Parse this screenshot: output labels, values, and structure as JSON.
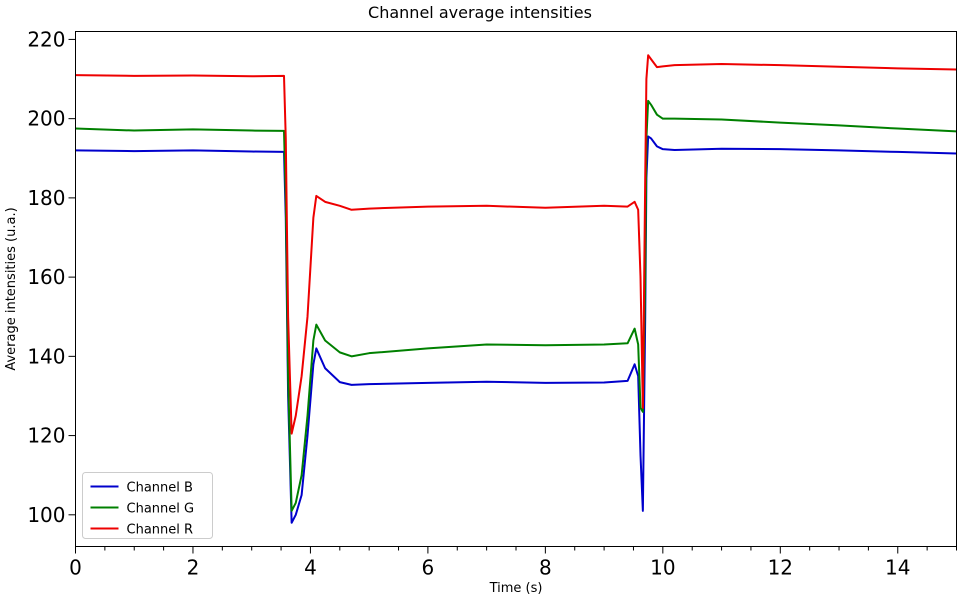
{
  "chart_data": {
    "type": "line",
    "title": "Channel average intensities",
    "xlabel": "Time (s)",
    "ylabel": "Average intensities (u.a.)",
    "xlim": [
      0,
      15
    ],
    "ylim": [
      92,
      222
    ],
    "xticks": [
      0,
      2,
      4,
      6,
      8,
      10,
      12,
      14
    ],
    "yticks": [
      100,
      120,
      140,
      160,
      180,
      200,
      220
    ],
    "grid": false,
    "legend_position": "bottom-left",
    "series": [
      {
        "name": "Channel B",
        "color": "#0000cc",
        "x": [
          0,
          1,
          2,
          3,
          3.55,
          3.58,
          3.62,
          3.68,
          3.75,
          3.85,
          3.95,
          4.05,
          4.1,
          4.25,
          4.5,
          4.7,
          5,
          6,
          7,
          8,
          9,
          9.4,
          9.52,
          9.58,
          9.62,
          9.66,
          9.7,
          9.72,
          9.75,
          9.8,
          9.9,
          10,
          10.2,
          11,
          12,
          13,
          14,
          15
        ],
        "y": [
          192,
          191.8,
          192,
          191.7,
          191.6,
          175,
          130,
          98,
          100,
          105,
          120,
          138,
          142,
          137,
          133.5,
          132.8,
          133,
          133.3,
          133.6,
          133.3,
          133.4,
          133.8,
          138,
          135,
          115,
          101,
          150,
          185,
          195.5,
          195,
          193,
          192.3,
          192.1,
          192.4,
          192.3,
          192,
          191.6,
          191.2
        ]
      },
      {
        "name": "Channel G",
        "color": "#008000",
        "x": [
          0,
          1,
          2,
          3,
          3.55,
          3.58,
          3.62,
          3.68,
          3.75,
          3.85,
          3.95,
          4.05,
          4.1,
          4.25,
          4.5,
          4.7,
          5,
          6,
          7,
          8,
          9,
          9.4,
          9.52,
          9.58,
          9.62,
          9.66,
          9.7,
          9.72,
          9.75,
          9.8,
          9.9,
          10,
          10.2,
          11,
          12,
          13,
          14,
          15
        ],
        "y": [
          197.5,
          197,
          197.3,
          197,
          196.9,
          180,
          135,
          101,
          103,
          110,
          125,
          144,
          148,
          144,
          141,
          140,
          140.8,
          142,
          143,
          142.8,
          143,
          143.3,
          147,
          143,
          127,
          126,
          160,
          195,
          204.5,
          203.5,
          201,
          200,
          200,
          199.8,
          199,
          198.3,
          197.5,
          196.8
        ]
      },
      {
        "name": "Channel R",
        "color": "#ee0000",
        "x": [
          0,
          1,
          2,
          3,
          3.55,
          3.58,
          3.62,
          3.68,
          3.75,
          3.85,
          3.95,
          4.05,
          4.1,
          4.25,
          4.5,
          4.7,
          5,
          6,
          7,
          8,
          9,
          9.4,
          9.52,
          9.58,
          9.62,
          9.66,
          9.7,
          9.72,
          9.75,
          9.8,
          9.9,
          10,
          10.2,
          11,
          12,
          13,
          14,
          15
        ],
        "y": [
          211,
          210.8,
          210.9,
          210.7,
          210.8,
          195,
          150,
          120.5,
          125,
          135,
          150,
          175,
          180.5,
          179,
          178,
          177,
          177.3,
          177.8,
          178,
          177.5,
          178,
          177.8,
          179,
          177,
          160,
          127,
          185,
          210,
          216,
          215,
          213,
          213.2,
          213.5,
          213.8,
          213.5,
          213.1,
          212.7,
          212.4
        ]
      }
    ]
  }
}
